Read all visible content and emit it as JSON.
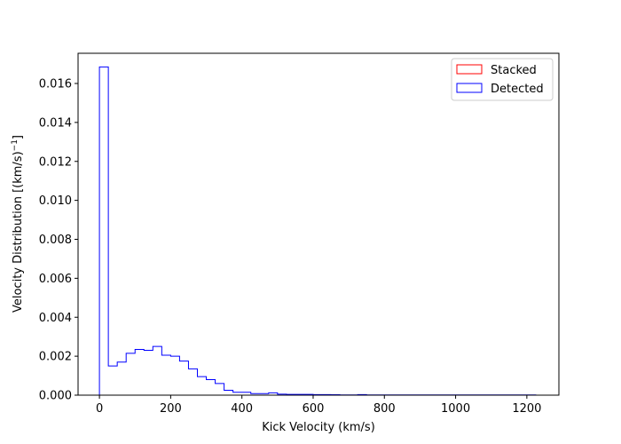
{
  "chart_data": {
    "type": "histogram",
    "xlabel": "Kick Velocity (km/s)",
    "ylabel": "Velocity Distribution [(km/s)",
    "ylabel_exp": "−1",
    "ylabel_close": "]",
    "xlim": [
      -60,
      1290
    ],
    "ylim": [
      0,
      0.01755
    ],
    "xticks": [
      0,
      200,
      400,
      600,
      800,
      1000,
      1200
    ],
    "xtick_labels": [
      "0",
      "200",
      "400",
      "600",
      "800",
      "1000",
      "1200"
    ],
    "yticks": [
      0.0,
      0.002,
      0.004,
      0.006,
      0.008,
      0.01,
      0.012,
      0.014,
      0.016
    ],
    "ytick_labels": [
      "0.000",
      "0.002",
      "0.004",
      "0.006",
      "0.008",
      "0.010",
      "0.012",
      "0.014",
      "0.016"
    ],
    "legend_position": "top-right",
    "series": [
      {
        "name": "Stacked",
        "color": "#ff0000",
        "bin_edges": [],
        "values": []
      },
      {
        "name": "Detected",
        "color": "#0000ff",
        "bin_edges": [
          0,
          25,
          50,
          75,
          100,
          125,
          150,
          175,
          200,
          225,
          250,
          275,
          300,
          325,
          350,
          375,
          400,
          425,
          450,
          475,
          500,
          525,
          550,
          575,
          600,
          625,
          650,
          675,
          700,
          725,
          750,
          775,
          800,
          825,
          850,
          875,
          900,
          925,
          950,
          975,
          1000,
          1025,
          1050,
          1075,
          1100,
          1125,
          1150,
          1175,
          1200,
          1225
        ],
        "values": [
          0.01685,
          0.0015,
          0.0017,
          0.00215,
          0.00235,
          0.0023,
          0.0025,
          0.00205,
          0.002,
          0.00175,
          0.00135,
          0.00095,
          0.0008,
          0.0006,
          0.00025,
          0.00015,
          0.00015,
          8e-05,
          8e-05,
          0.00012,
          5e-05,
          4e-05,
          4e-05,
          4e-05,
          3e-05,
          3e-05,
          2e-05,
          1e-05,
          1e-05,
          3e-05,
          1e-05,
          1e-05,
          1e-05,
          1e-05,
          1e-05,
          1e-05,
          1e-05,
          1e-05,
          1e-05,
          1e-05,
          1e-05,
          1e-05,
          1e-05,
          1e-05,
          1e-05,
          1e-05,
          1e-05,
          1e-05,
          1e-05
        ]
      }
    ]
  }
}
